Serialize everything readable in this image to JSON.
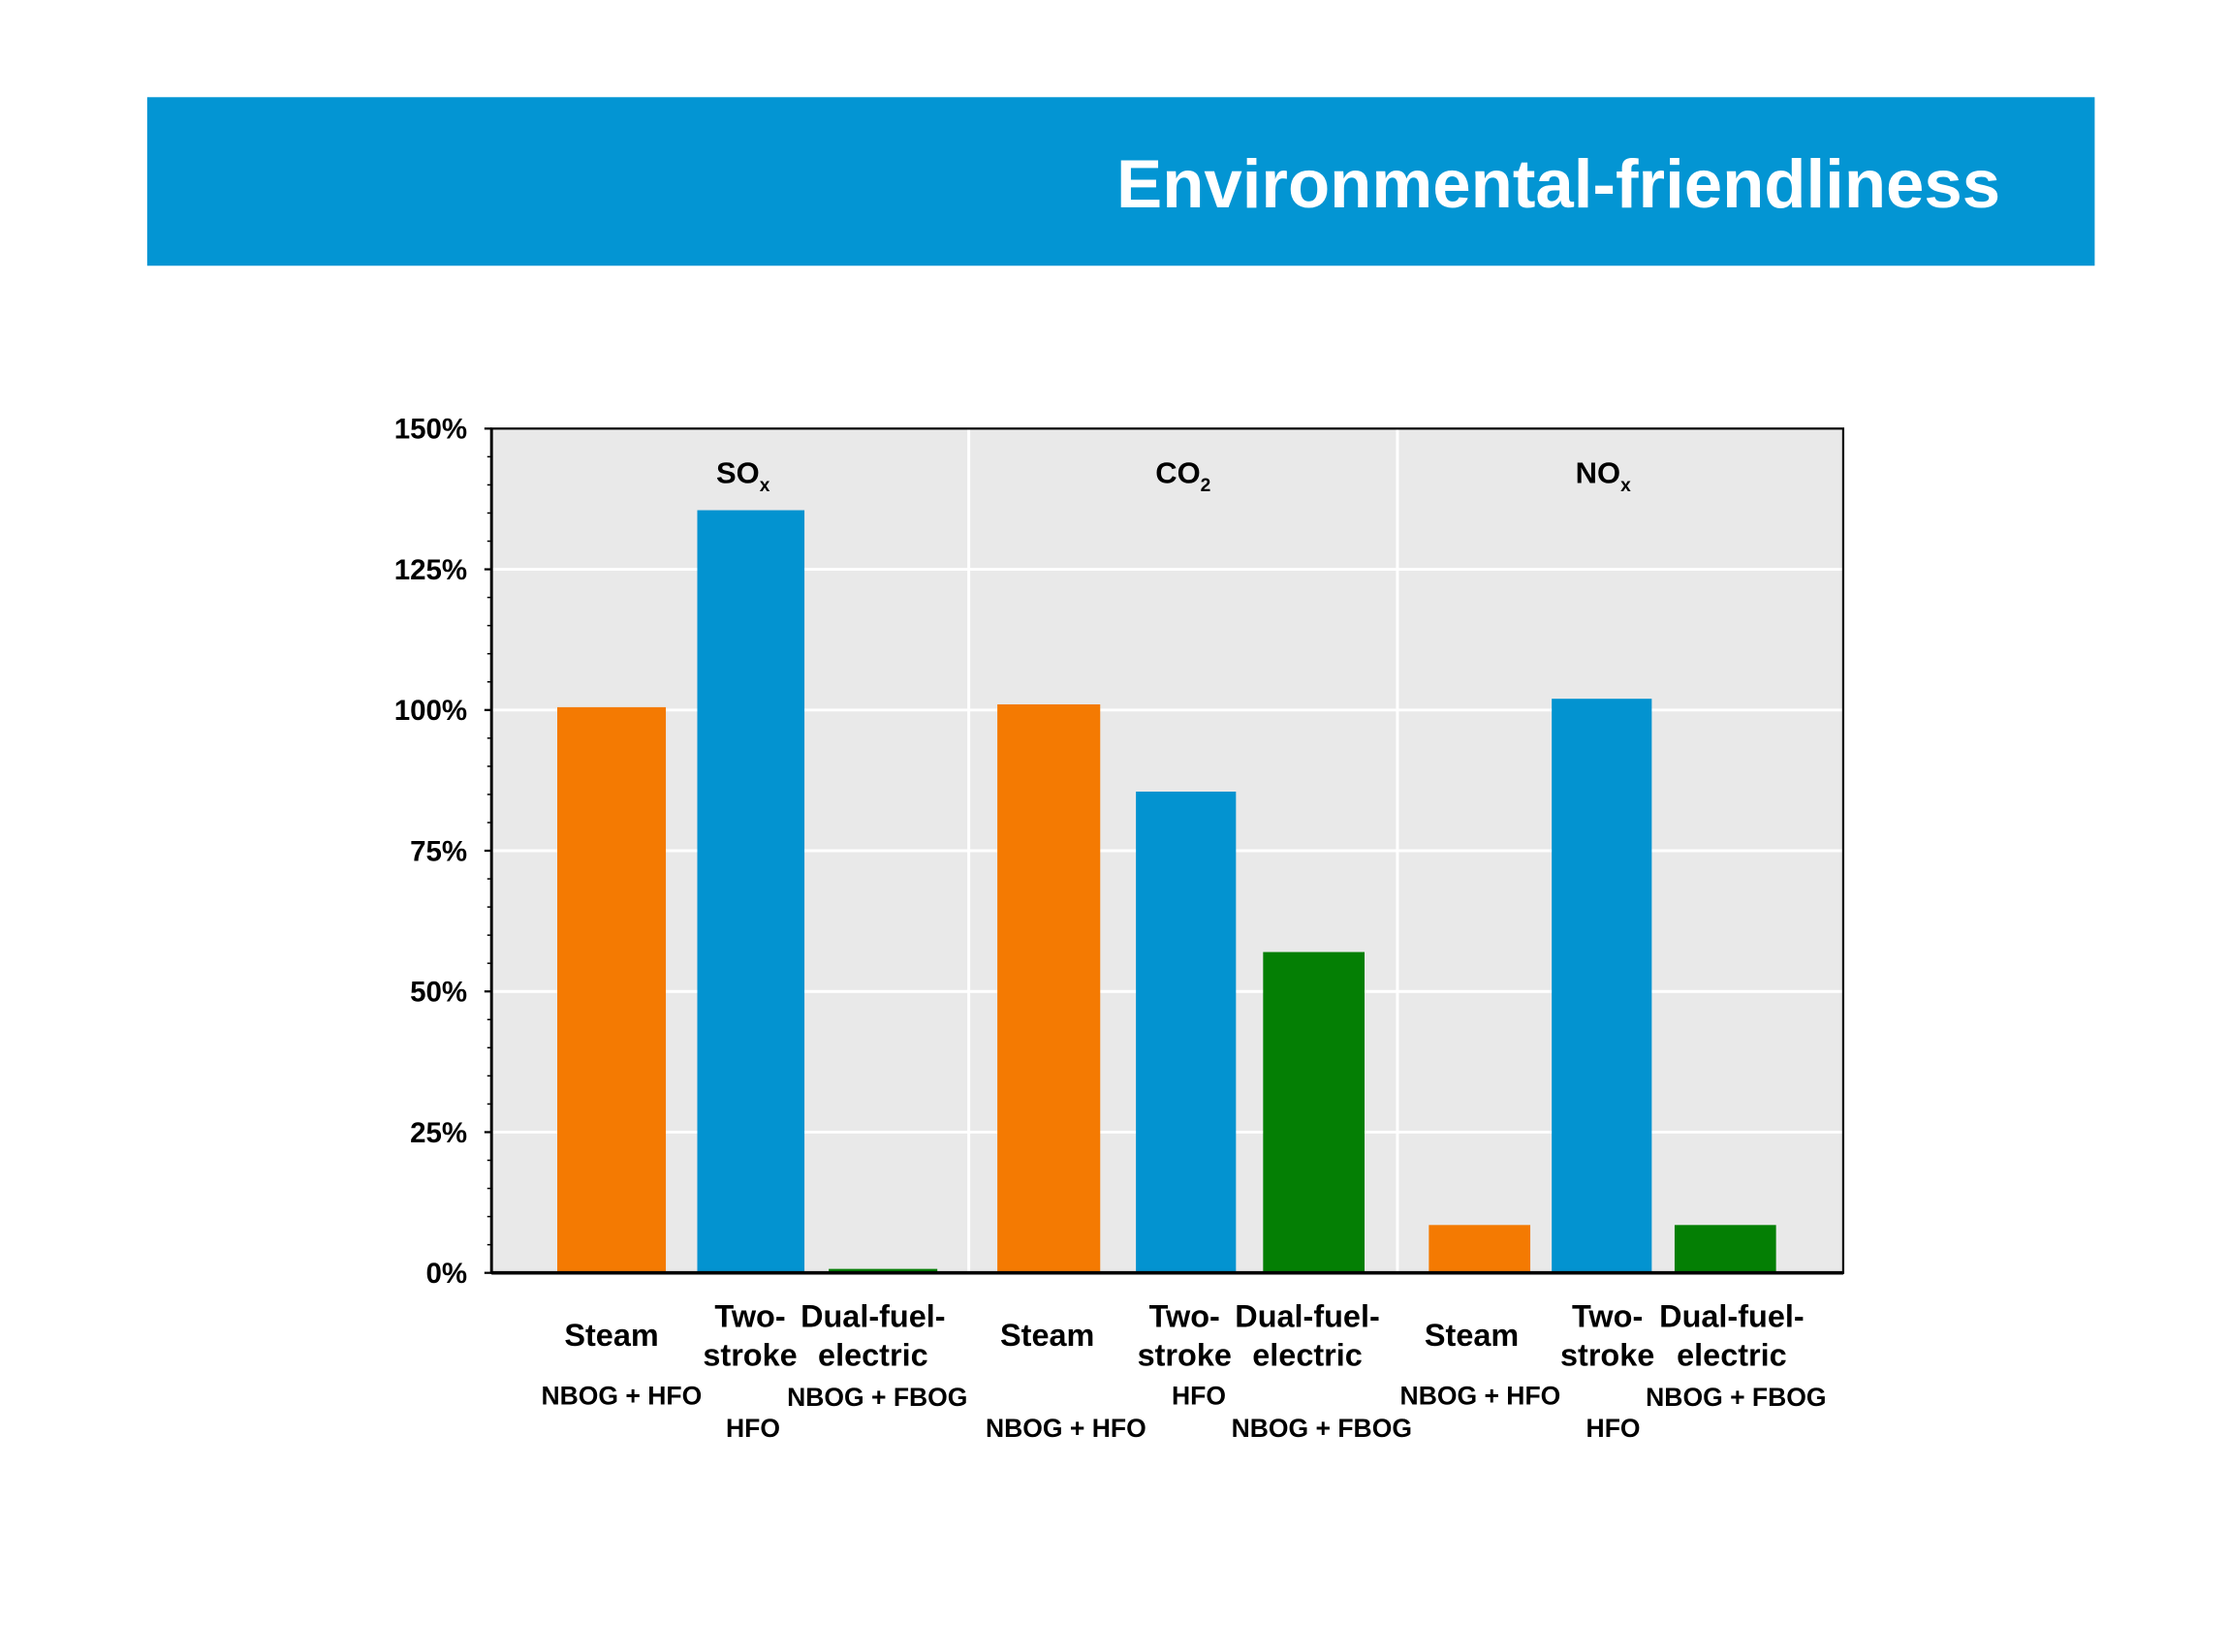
{
  "header": {
    "title": "Environmental-friendliness"
  },
  "colors": {
    "header_bg": "#0395d3",
    "steam": "#f47a02",
    "two_stroke": "#0393d0",
    "dual_fuel": "#047f04",
    "plot_bg": "#e9e9e9"
  },
  "chart_data": {
    "type": "bar",
    "title": "",
    "ylabel": "",
    "xlabel": "",
    "ylim": [
      0,
      150
    ],
    "yticks": [
      "0%",
      "25%",
      "50%",
      "75%",
      "100%",
      "125%",
      "150%"
    ],
    "ytick_values": [
      0,
      25,
      50,
      75,
      100,
      125,
      150
    ],
    "grid": true,
    "groups": [
      {
        "name": "SO",
        "sub": "x",
        "values": [
          100.5,
          135.5,
          0.7
        ]
      },
      {
        "name": "CO",
        "sub": "2",
        "values": [
          101,
          85.5,
          57
        ]
      },
      {
        "name": "NO",
        "sub": "x",
        "values": [
          8.5,
          102,
          8.5
        ]
      }
    ],
    "categories": [
      {
        "label": [
          "Steam"
        ],
        "fuel": "NBOG + HFO",
        "color_key": "steam"
      },
      {
        "label": [
          "Two-",
          "stroke"
        ],
        "fuel": "HFO",
        "color_key": "two_stroke"
      },
      {
        "label": [
          "Dual-fuel-",
          "electric"
        ],
        "fuel": "NBOG + FBOG",
        "color_key": "dual_fuel"
      }
    ]
  }
}
